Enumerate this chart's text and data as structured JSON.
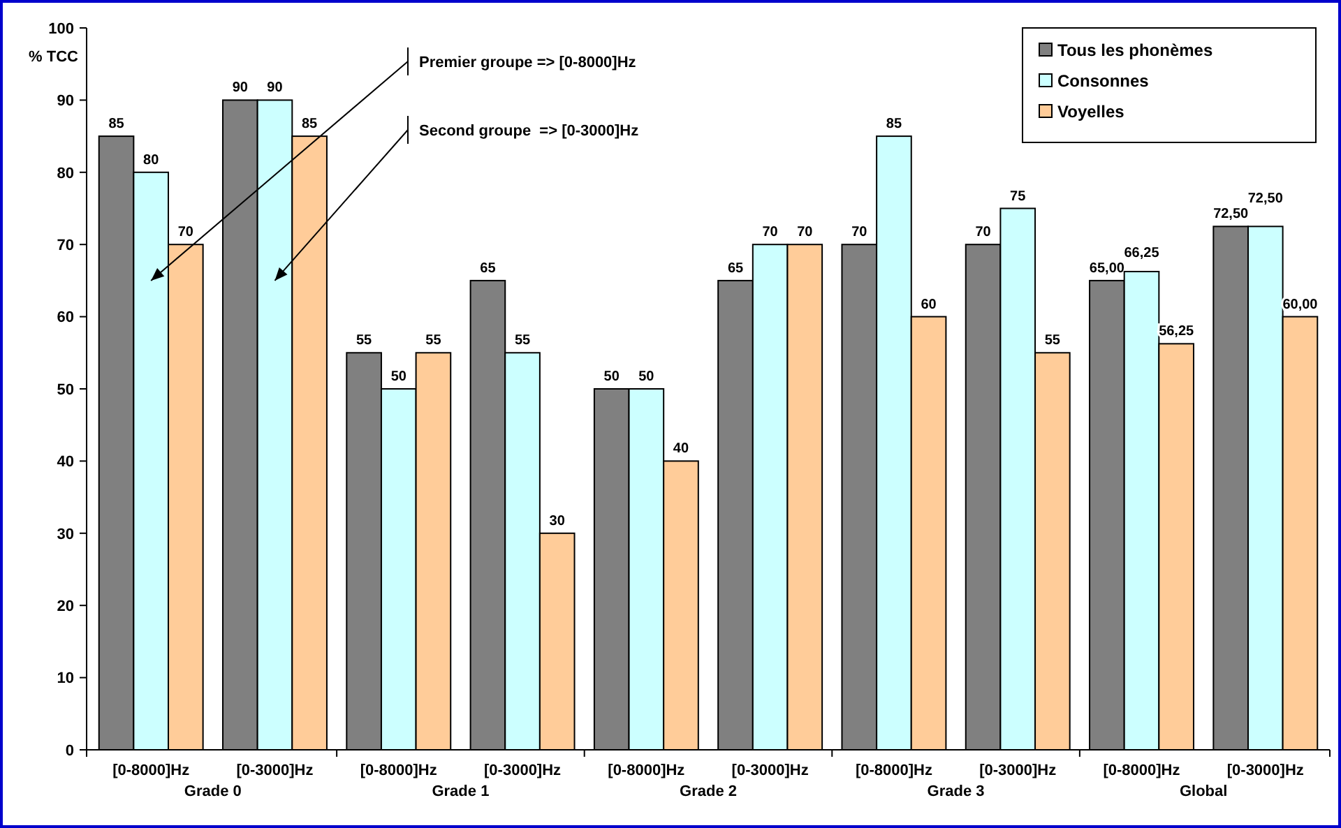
{
  "chart_data": {
    "type": "bar",
    "ylabel": "% TCC",
    "categories": [
      "[0-8000]Hz",
      "[0-3000]Hz",
      "[0-8000]Hz",
      "[0-3000]Hz",
      "[0-8000]Hz",
      "[0-3000]Hz",
      "[0-8000]Hz",
      "[0-3000]Hz",
      "[0-8000]Hz",
      "[0-3000]Hz"
    ],
    "series": [
      {
        "name": "Tous les phonèmes",
        "color": "#808080",
        "values": [
          85,
          90,
          55,
          65,
          50,
          65,
          70,
          70,
          65,
          72.5
        ],
        "value_labels": [
          "85",
          "90",
          "55",
          "65",
          "50",
          "65",
          "70",
          "70",
          "65,00",
          "72,50"
        ]
      },
      {
        "name": "Consonnes",
        "color": "#ccffff",
        "values": [
          80,
          90,
          50,
          55,
          50,
          70,
          85,
          75,
          66.25,
          72.5
        ],
        "value_labels": [
          "80",
          "90",
          "50",
          "55",
          "50",
          "70",
          "85",
          "75",
          "66,25",
          "72,50"
        ]
      },
      {
        "name": "Voyelles",
        "color": "#ffcc99",
        "values": [
          70,
          85,
          55,
          30,
          40,
          70,
          60,
          55,
          56.25,
          60
        ],
        "value_labels": [
          "70",
          "85",
          "55",
          "30",
          "40",
          "70",
          "60",
          "55",
          "56,25",
          "60,00"
        ]
      }
    ],
    "annotations": [
      "Premier groupe => [0-8000]Hz",
      "Second groupe  => [0-3000]Hz",
      "Grade 0",
      "Grade 1",
      "Grade 2",
      "Grade 3",
      "Global"
    ],
    "ylim": [
      0,
      100
    ],
    "yticks": [
      0,
      10,
      20,
      30,
      40,
      50,
      60,
      70,
      80,
      90,
      100
    ],
    "grid": false,
    "legend": "top right"
  }
}
